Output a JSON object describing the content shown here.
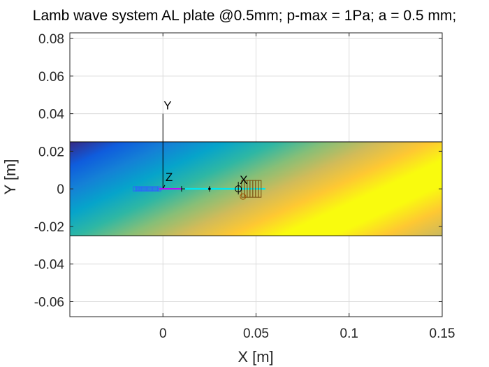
{
  "chart_data": {
    "type": "heatmap",
    "title": "Lamb wave system AL plate @0.5mm; p-max = 1Pa; a = 0.5 mm;",
    "xlabel": "X [m]",
    "ylabel": "Y [m]",
    "xlim": [
      -0.05,
      0.15
    ],
    "ylim": [
      -0.068,
      0.083
    ],
    "xticks": [
      0,
      0.05,
      0.1,
      0.15
    ],
    "xtick_labels": [
      "0",
      "0.05",
      "0.1",
      "0.15"
    ],
    "yticks": [
      0.08,
      0.06,
      0.04,
      0.02,
      0,
      -0.02,
      -0.04,
      -0.06
    ],
    "ytick_labels": [
      "0.08",
      "0.06",
      "0.04",
      "0.02",
      "0",
      "-0.02",
      "-0.04",
      "-0.06"
    ],
    "grid": true,
    "colormap": [
      "#352a87",
      "#0f5cdd",
      "#1481d6",
      "#06a4ca",
      "#2eb7a4",
      "#87bf77",
      "#d1bb59",
      "#fec832",
      "#f9fb0e"
    ],
    "plate": {
      "x_range": [
        -0.05,
        0.15
      ],
      "y_range": [
        -0.025,
        0.025
      ]
    },
    "triad": {
      "origin": [
        0,
        0
      ],
      "axes": [
        {
          "label": "Y",
          "tip": [
            0,
            0.04
          ]
        },
        {
          "label": "Z",
          "tip": [
            0.001,
            0.002
          ]
        }
      ]
    },
    "markers": {
      "actuator_coils": {
        "x": [
          -0.015,
          -0.002
        ],
        "y": 0,
        "count": 11,
        "color": "#2f5fff"
      },
      "actuator_wire": {
        "x": [
          -0.002,
          0.01
        ],
        "y": 0,
        "color": "#c000ff"
      },
      "sensor_line": {
        "x": [
          0.01,
          0.055
        ],
        "y": 0,
        "color": "#00e5ee"
      },
      "sensor_coils": {
        "x": [
          0.043,
          0.052
        ],
        "y": 0,
        "count": 7,
        "color": "#7a5010"
      },
      "sensor_label": {
        "text": "X",
        "x": 0.042
      }
    }
  }
}
